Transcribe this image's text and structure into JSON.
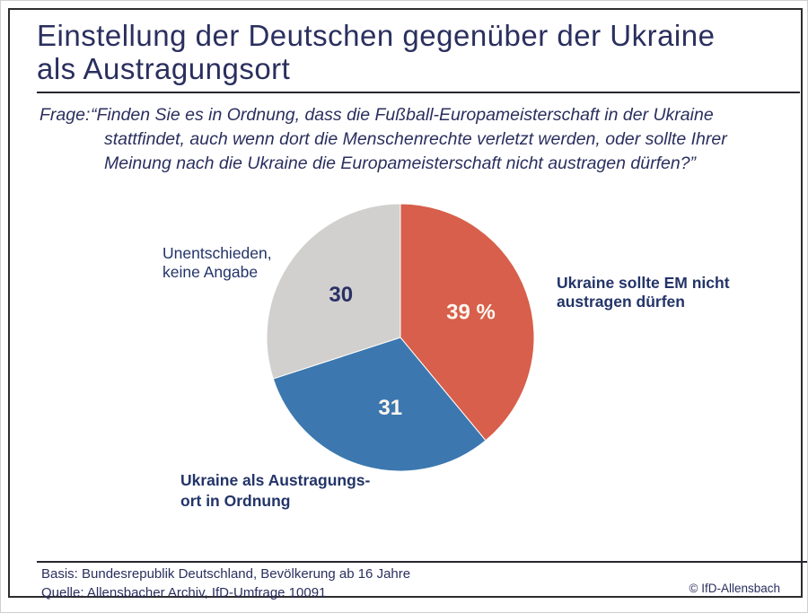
{
  "colors": {
    "navy_text": "#2a2f5e",
    "frame_border": "#2d2d2d",
    "slice_against": "#d85f4b",
    "slice_infavor": "#3c78af",
    "slice_undecided": "#d1d0ce"
  },
  "header": {
    "title_line1": "Einstellung der Deutschen gegenüber der Ukraine",
    "title_line2": "als Austragungsort"
  },
  "question": {
    "prefix": "Frage:",
    "lines": [
      "“Finden Sie es in Ordnung, dass die Fußball-Europameisterschaft in der Ukraine",
      "stattfindet, auch wenn dort die Menschenrechte verletzt werden, oder sollte Ihrer",
      "Meinung nach die Ukraine die Europameisterschaft nicht austragen dürfen?”"
    ]
  },
  "chart_data": {
    "type": "pie",
    "title": "Einstellung der Deutschen gegenüber der Ukraine als Austragungsort",
    "unit": "percent",
    "start_angle_deg": 0,
    "direction": "clockwise",
    "slices": [
      {
        "label": "Ukraine sollte EM nicht austragen dürfen",
        "value": 39,
        "display": "39 %",
        "color": "#d85f4b",
        "value_color": "#fdf6ef"
      },
      {
        "label": "Ukraine als Austragungsort in Ordnung",
        "value": 31,
        "display": "31",
        "color": "#3c78af",
        "value_color": "#fdf6ef"
      },
      {
        "label": "Unentschieden, keine Angabe",
        "value": 30,
        "display": "30",
        "color": "#d1d0ce",
        "value_color": "#2a3166"
      }
    ]
  },
  "labels": {
    "undecided": {
      "line1": "Unentschieden,",
      "line2": "keine Angabe"
    },
    "against": {
      "line1": "Ukraine sollte EM nicht",
      "line2": "austragen dürfen"
    },
    "infavor": {
      "line1": "Ukraine als Austragungs-",
      "line2": "ort in Ordnung"
    }
  },
  "footer": {
    "basis": "Basis: Bundesrepublik Deutschland, Bevölkerung ab 16 Jahre",
    "quelle": "Quelle: Allensbacher Archiv, IfD-Umfrage 10091",
    "copyright": "© IfD-Allensbach"
  }
}
